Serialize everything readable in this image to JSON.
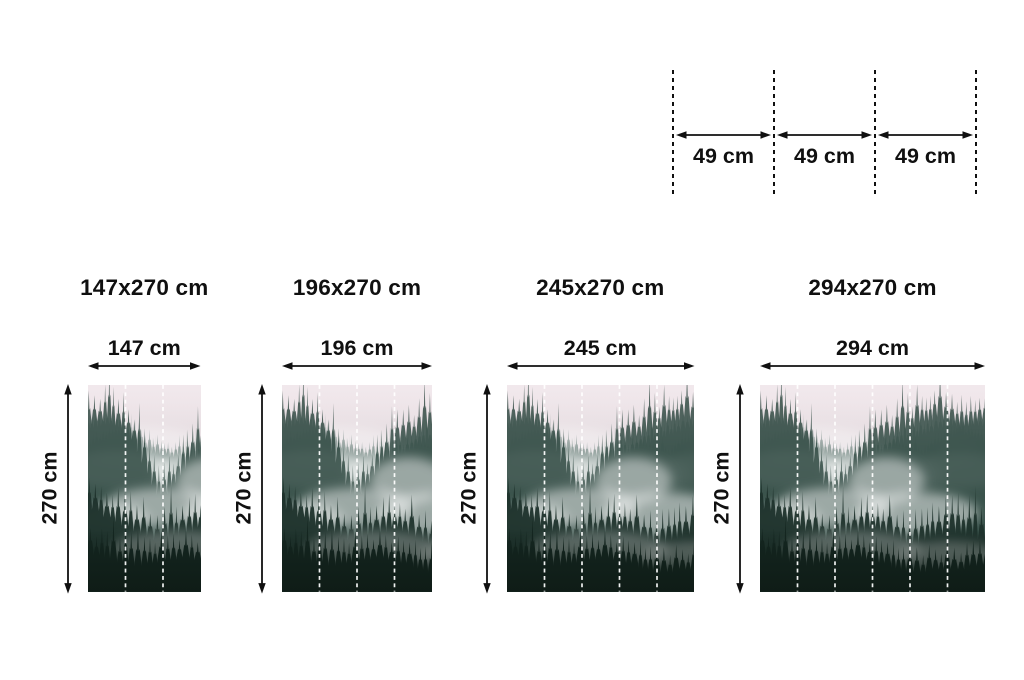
{
  "panel_width_cm": 49,
  "panel_diagram": {
    "edge_count": 4,
    "segments": [
      {
        "label": "49 cm"
      },
      {
        "label": "49 cm"
      },
      {
        "label": "49 cm"
      }
    ]
  },
  "wallpapers": [
    {
      "title": "147x270 cm",
      "width_label": "147 cm",
      "height_label": "270 cm",
      "width_cm": 147,
      "height_cm": 270,
      "panels": 3
    },
    {
      "title": "196x270 cm",
      "width_label": "196 cm",
      "height_label": "270 cm",
      "width_cm": 196,
      "height_cm": 270,
      "panels": 4
    },
    {
      "title": "245x270 cm",
      "width_label": "245 cm",
      "height_label": "270 cm",
      "width_cm": 245,
      "height_cm": 270,
      "panels": 5
    },
    {
      "title": "294x270 cm",
      "width_label": "294 cm",
      "height_label": "270 cm",
      "width_cm": 294,
      "height_cm": 270,
      "panels": 6
    }
  ],
  "colors": {
    "ink": "#101010",
    "separator_line": "#ffffff",
    "fog_top": "#ece3e7",
    "fog_pink": "#ded6da",
    "fog_mid": "#c9cfcc",
    "fog_low": "#aeb8b3",
    "tree_far": "#6b8078",
    "tree_mid": "#44615a",
    "tree_near": "#2c453e",
    "tree_front": "#1d322b",
    "tree_deep": "#142620"
  }
}
